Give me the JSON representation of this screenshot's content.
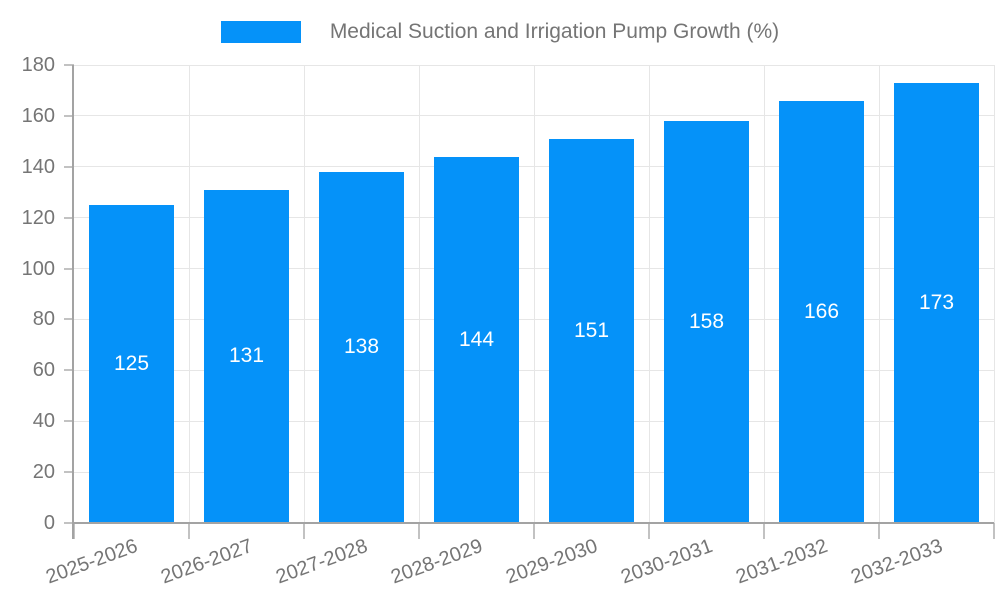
{
  "legend": {
    "label": "Medical Suction and Irrigation Pump Growth (%)"
  },
  "chart_data": {
    "type": "bar",
    "title": "Medical Suction and Irrigation Pump Growth (%)",
    "series": [
      {
        "name": "Medical Suction and Irrigation Pump Growth (%)",
        "values": [
          125,
          131,
          138,
          144,
          151,
          158,
          166,
          173
        ]
      }
    ],
    "categories": [
      "2025-2026",
      "2026-2027",
      "2027-2028",
      "2028-2029",
      "2029-2030",
      "2030-2031",
      "2031-2032",
      "2032-2033"
    ],
    "values": [
      125,
      131,
      138,
      144,
      151,
      158,
      166,
      173
    ],
    "xlabel": "",
    "ylabel": "",
    "ylim": [
      0,
      180
    ],
    "ytick_step": 20,
    "ytick_labels": [
      "0",
      "20",
      "40",
      "60",
      "80",
      "100",
      "120",
      "140",
      "160",
      "180"
    ],
    "grid": "on",
    "legend_position": "top-center",
    "x_label_rotation_deg": -20,
    "value_labels": "inside-center",
    "colors": {
      "bar": "#0592f9",
      "value_label": "#ffffff",
      "axis_text": "#757575",
      "grid_line": "#e6e6e6",
      "axis_line": "#a3a3a3",
      "tick_mark": "#c2c2c2",
      "background": "#ffffff"
    }
  }
}
